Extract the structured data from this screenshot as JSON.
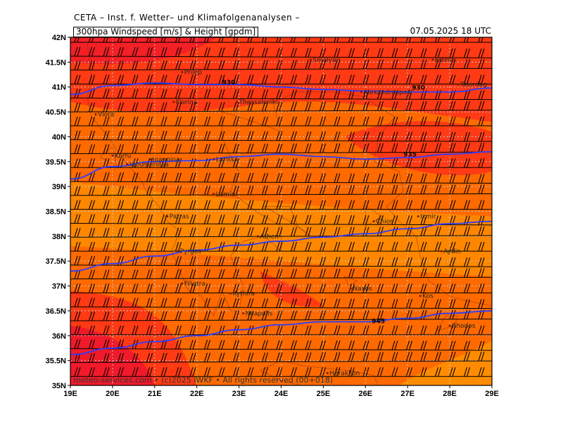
{
  "header": {
    "institute": "CETA – Inst. f. Wetter– und Klimafolgenanalysen –",
    "product": "300hpa Windspeed [m/s] & Height [gpdm]",
    "valid_time": "07.05.2025  18 UTC"
  },
  "map": {
    "lon_range": [
      19,
      29
    ],
    "lat_range": [
      35,
      42
    ],
    "x_ticks": [
      "19E",
      "20E",
      "21E",
      "22E",
      "23E",
      "24E",
      "25E",
      "26E",
      "27E",
      "28E",
      "29E"
    ],
    "y_ticks": [
      "42N",
      "41.5N",
      "41N",
      "40.5N",
      "40N",
      "39.5N",
      "39N",
      "38.5N",
      "38N",
      "37.5N",
      "37N",
      "36.5N",
      "36N",
      "35.5N",
      "35N"
    ],
    "colors": {
      "background_field": "#ff6a00",
      "strong_wind": "#ff3a14",
      "jet_core": "#f01a2a",
      "weak_wind": "#ff8c00",
      "contour": "#2a3cff",
      "grid": "#c8c8c8",
      "barb": "#000000"
    },
    "contours": [
      {
        "label": "930",
        "label_lon": 22.6,
        "label_lat": 41.05,
        "label2_lon": 27.1,
        "label2_lat": 40.95,
        "points": [
          [
            19,
            40.85
          ],
          [
            20,
            41.03
          ],
          [
            21,
            41.08
          ],
          [
            22,
            41.05
          ],
          [
            23,
            41.05
          ],
          [
            24,
            41.0
          ],
          [
            25,
            40.95
          ],
          [
            26,
            40.92
          ],
          [
            27,
            40.9
          ],
          [
            28,
            40.9
          ],
          [
            29,
            40.98
          ]
        ]
      },
      {
        "label": "935",
        "label_lon": 26.9,
        "label_lat": 39.6,
        "points": [
          [
            19,
            39.15
          ],
          [
            20,
            39.4
          ],
          [
            21,
            39.5
          ],
          [
            22,
            39.52
          ],
          [
            23,
            39.6
          ],
          [
            24,
            39.65
          ],
          [
            25,
            39.6
          ],
          [
            26,
            39.55
          ],
          [
            27,
            39.58
          ],
          [
            28,
            39.65
          ],
          [
            29,
            39.7
          ]
        ]
      },
      {
        "label": "",
        "points": [
          [
            19,
            37.3
          ],
          [
            20,
            37.45
          ],
          [
            21,
            37.6
          ],
          [
            22,
            37.72
          ],
          [
            23,
            37.82
          ],
          [
            24,
            37.9
          ],
          [
            25,
            37.98
          ],
          [
            26,
            38.05
          ],
          [
            27,
            38.15
          ],
          [
            28,
            38.25
          ],
          [
            29,
            38.3
          ]
        ]
      },
      {
        "label": "945",
        "label_lon": 26.15,
        "label_lat": 36.25,
        "points": [
          [
            19,
            35.62
          ],
          [
            20,
            35.75
          ],
          [
            21,
            35.88
          ],
          [
            22,
            36.0
          ],
          [
            23,
            36.12
          ],
          [
            24,
            36.22
          ],
          [
            25,
            36.28
          ],
          [
            26,
            36.28
          ],
          [
            27,
            36.35
          ],
          [
            28,
            36.45
          ],
          [
            29,
            36.5
          ]
        ]
      }
    ],
    "cities": [
      {
        "name": "Vlora",
        "lon": 19.6,
        "lat": 40.45
      },
      {
        "name": "Korfu",
        "lon": 20.0,
        "lat": 39.62
      },
      {
        "name": "Igoumenitsa",
        "lon": 20.35,
        "lat": 39.45
      },
      {
        "name": "Ioannina",
        "lon": 20.9,
        "lat": 39.55
      },
      {
        "name": "Larissa",
        "lon": 22.4,
        "lat": 39.55
      },
      {
        "name": "Florina",
        "lon": 21.45,
        "lat": 40.7
      },
      {
        "name": "Thessaloniki",
        "lon": 22.95,
        "lat": 40.7
      },
      {
        "name": "Prilep",
        "lon": 21.65,
        "lat": 41.3
      },
      {
        "name": "Smolyan",
        "lon": 24.7,
        "lat": 41.55
      },
      {
        "name": "Alexandroupoli",
        "lon": 25.9,
        "lat": 40.9
      },
      {
        "name": "Lamia",
        "lon": 22.4,
        "lat": 38.85
      },
      {
        "name": "Patras",
        "lon": 21.3,
        "lat": 38.4
      },
      {
        "name": "Pyrgos",
        "lon": 21.55,
        "lat": 37.7
      },
      {
        "name": "Athen",
        "lon": 23.45,
        "lat": 38.0
      },
      {
        "name": "Chios",
        "lon": 26.2,
        "lat": 38.3
      },
      {
        "name": "Izmir",
        "lon": 27.25,
        "lat": 38.4
      },
      {
        "name": "Aydin",
        "lon": 27.8,
        "lat": 37.7
      },
      {
        "name": "Filiatra",
        "lon": 21.65,
        "lat": 37.05
      },
      {
        "name": "Kythira",
        "lon": 22.8,
        "lat": 36.85
      },
      {
        "name": "Neapolis",
        "lon": 23.1,
        "lat": 36.45
      },
      {
        "name": "Naxos",
        "lon": 25.65,
        "lat": 36.95
      },
      {
        "name": "Kos",
        "lon": 27.3,
        "lat": 36.8
      },
      {
        "name": "Rhodos",
        "lon": 28.0,
        "lat": 36.2
      },
      {
        "name": "Heraklion",
        "lon": 25.1,
        "lat": 35.25
      },
      {
        "name": "Edirne",
        "lon": 27.6,
        "lat": 41.55
      },
      {
        "name": "Tekirdag",
        "lon": 28.2,
        "lat": 41.05
      }
    ],
    "footer": "meteo-services.com • (c)2025 IWKF • All rights reserved (00+018)"
  }
}
